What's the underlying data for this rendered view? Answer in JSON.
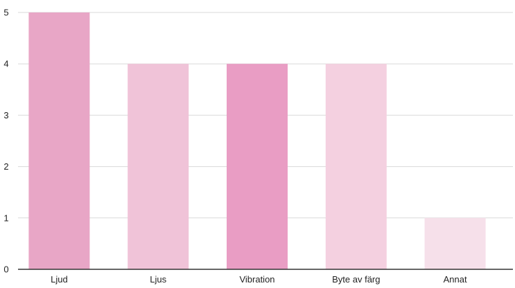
{
  "chart_data": {
    "type": "bar",
    "title": "",
    "xlabel": "",
    "ylabel": "",
    "categories": [
      "Ljud",
      "Ljus",
      "Vibration",
      "Byte av färg",
      "Annat"
    ],
    "values": [
      5,
      4,
      4,
      4,
      1
    ],
    "ylim": [
      0,
      5
    ],
    "yticks": [
      "0",
      "1",
      "2",
      "3",
      "4",
      "5"
    ],
    "grid": true,
    "legend": "none",
    "bar_colors": [
      "#e8a6c6",
      "#f0c3d8",
      "#e99dc4",
      "#f4d0e0",
      "#f6e0ea"
    ]
  }
}
